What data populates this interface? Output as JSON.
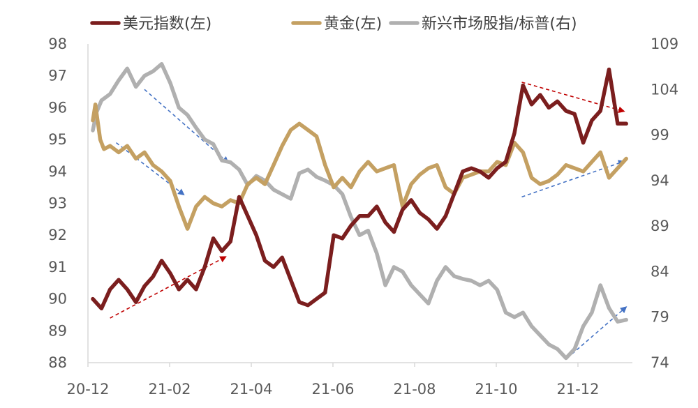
{
  "chart_data": {
    "type": "line",
    "legend_position": "top",
    "grid": false,
    "x_ticks": [
      "20-12",
      "21-02",
      "21-04",
      "21-06",
      "21-08",
      "21-10",
      "21-12"
    ],
    "y_left": {
      "min": 88,
      "max": 98,
      "ticks": [
        88,
        89,
        90,
        91,
        92,
        93,
        94,
        95,
        96,
        97,
        98
      ]
    },
    "y_right": {
      "min": 74,
      "max": 109,
      "ticks": [
        74,
        79,
        84,
        89,
        94,
        99,
        104,
        109
      ]
    },
    "series": [
      {
        "name": "美元指数(左)",
        "axis": "left",
        "color": "#7B1E1E",
        "points": [
          [
            "2020-12-01",
            90.0
          ],
          [
            "2020-12-08",
            89.7
          ],
          [
            "2020-12-15",
            90.3
          ],
          [
            "2020-12-22",
            90.6
          ],
          [
            "2020-12-29",
            90.3
          ],
          [
            "2021-01-05",
            89.9
          ],
          [
            "2021-01-12",
            90.4
          ],
          [
            "2021-01-19",
            90.7
          ],
          [
            "2021-01-26",
            91.2
          ],
          [
            "2021-02-02",
            90.8
          ],
          [
            "2021-02-09",
            90.3
          ],
          [
            "2021-02-16",
            90.6
          ],
          [
            "2021-02-23",
            90.3
          ],
          [
            "2021-03-02",
            91.0
          ],
          [
            "2021-03-09",
            91.9
          ],
          [
            "2021-03-16",
            91.5
          ],
          [
            "2021-03-23",
            91.8
          ],
          [
            "2021-03-30",
            93.2
          ],
          [
            "2021-04-06",
            92.6
          ],
          [
            "2021-04-13",
            92.0
          ],
          [
            "2021-04-20",
            91.2
          ],
          [
            "2021-04-27",
            91.0
          ],
          [
            "2021-05-04",
            91.3
          ],
          [
            "2021-05-11",
            90.6
          ],
          [
            "2021-05-18",
            89.9
          ],
          [
            "2021-05-25",
            89.8
          ],
          [
            "2021-06-01",
            90.0
          ],
          [
            "2021-06-08",
            90.2
          ],
          [
            "2021-06-15",
            92.0
          ],
          [
            "2021-06-22",
            91.9
          ],
          [
            "2021-06-29",
            92.3
          ],
          [
            "2021-07-06",
            92.6
          ],
          [
            "2021-07-13",
            92.6
          ],
          [
            "2021-07-20",
            92.9
          ],
          [
            "2021-07-27",
            92.4
          ],
          [
            "2021-08-03",
            92.1
          ],
          [
            "2021-08-10",
            92.8
          ],
          [
            "2021-08-17",
            93.1
          ],
          [
            "2021-08-24",
            92.7
          ],
          [
            "2021-08-31",
            92.5
          ],
          [
            "2021-09-07",
            92.2
          ],
          [
            "2021-09-14",
            92.6
          ],
          [
            "2021-09-21",
            93.3
          ],
          [
            "2021-09-28",
            94.0
          ],
          [
            "2021-10-05",
            94.1
          ],
          [
            "2021-10-12",
            94.0
          ],
          [
            "2021-10-19",
            93.8
          ],
          [
            "2021-10-26",
            94.1
          ],
          [
            "2021-11-02",
            94.3
          ],
          [
            "2021-11-09",
            95.2
          ],
          [
            "2021-11-16",
            96.7
          ],
          [
            "2021-11-23",
            96.1
          ],
          [
            "2021-11-30",
            96.4
          ],
          [
            "2021-12-07",
            96.0
          ],
          [
            "2021-12-14",
            96.2
          ],
          [
            "2021-12-21",
            95.9
          ],
          [
            "2021-12-28",
            95.8
          ],
          [
            "2022-01-04",
            94.9
          ],
          [
            "2022-01-11",
            95.6
          ],
          [
            "2022-01-18",
            95.9
          ],
          [
            "2022-01-25",
            97.2
          ],
          [
            "2022-02-01",
            95.5
          ],
          [
            "2022-02-08",
            95.5
          ]
        ]
      },
      {
        "name": "黄金(左)",
        "axis": "left",
        "color": "#C4A062",
        "points": [
          [
            "2020-12-01",
            95.6
          ],
          [
            "2020-12-03",
            96.1
          ],
          [
            "2020-12-07",
            95.0
          ],
          [
            "2020-12-10",
            94.7
          ],
          [
            "2020-12-15",
            94.8
          ],
          [
            "2020-12-22",
            94.6
          ],
          [
            "2020-12-29",
            94.8
          ],
          [
            "2021-01-05",
            94.4
          ],
          [
            "2021-01-12",
            94.6
          ],
          [
            "2021-01-19",
            94.2
          ],
          [
            "2021-01-26",
            94.0
          ],
          [
            "2021-02-02",
            93.7
          ],
          [
            "2021-02-09",
            92.9
          ],
          [
            "2021-02-16",
            92.2
          ],
          [
            "2021-02-23",
            92.9
          ],
          [
            "2021-03-02",
            93.2
          ],
          [
            "2021-03-09",
            93.0
          ],
          [
            "2021-03-16",
            92.9
          ],
          [
            "2021-03-23",
            93.1
          ],
          [
            "2021-03-30",
            93.0
          ],
          [
            "2021-04-06",
            93.6
          ],
          [
            "2021-04-13",
            93.8
          ],
          [
            "2021-04-20",
            93.6
          ],
          [
            "2021-04-27",
            94.2
          ],
          [
            "2021-05-04",
            94.8
          ],
          [
            "2021-05-11",
            95.3
          ],
          [
            "2021-05-18",
            95.5
          ],
          [
            "2021-05-25",
            95.3
          ],
          [
            "2021-06-01",
            95.1
          ],
          [
            "2021-06-08",
            94.2
          ],
          [
            "2021-06-15",
            93.5
          ],
          [
            "2021-06-22",
            93.8
          ],
          [
            "2021-06-29",
            93.5
          ],
          [
            "2021-07-06",
            94.0
          ],
          [
            "2021-07-13",
            94.3
          ],
          [
            "2021-07-20",
            94.0
          ],
          [
            "2021-07-27",
            94.1
          ],
          [
            "2021-08-03",
            94.2
          ],
          [
            "2021-08-10",
            92.9
          ],
          [
            "2021-08-17",
            93.6
          ],
          [
            "2021-08-24",
            93.9
          ],
          [
            "2021-08-31",
            94.1
          ],
          [
            "2021-09-07",
            94.2
          ],
          [
            "2021-09-14",
            93.5
          ],
          [
            "2021-09-21",
            93.3
          ],
          [
            "2021-09-28",
            93.8
          ],
          [
            "2021-10-05",
            93.9
          ],
          [
            "2021-10-12",
            94.0
          ],
          [
            "2021-10-19",
            94.0
          ],
          [
            "2021-10-26",
            94.3
          ],
          [
            "2021-11-02",
            94.2
          ],
          [
            "2021-11-09",
            94.9
          ],
          [
            "2021-11-16",
            94.6
          ],
          [
            "2021-11-23",
            93.8
          ],
          [
            "2021-11-30",
            93.6
          ],
          [
            "2021-12-07",
            93.7
          ],
          [
            "2021-12-14",
            93.9
          ],
          [
            "2021-12-21",
            94.2
          ],
          [
            "2021-12-28",
            94.1
          ],
          [
            "2022-01-04",
            94.0
          ],
          [
            "2022-01-11",
            94.3
          ],
          [
            "2022-01-18",
            94.6
          ],
          [
            "2022-01-25",
            93.8
          ],
          [
            "2022-02-01",
            94.1
          ],
          [
            "2022-02-08",
            94.4
          ]
        ]
      },
      {
        "name": "新兴市场股指/标普(右)",
        "axis": "right",
        "color": "#B0B0B0",
        "points": [
          [
            "2020-12-01",
            99.5
          ],
          [
            "2020-12-04",
            101.5
          ],
          [
            "2020-12-08",
            102.8
          ],
          [
            "2020-12-15",
            103.5
          ],
          [
            "2020-12-22",
            105.0
          ],
          [
            "2020-12-29",
            106.3
          ],
          [
            "2021-01-05",
            104.3
          ],
          [
            "2021-01-12",
            105.5
          ],
          [
            "2021-01-19",
            106.0
          ],
          [
            "2021-01-26",
            106.8
          ],
          [
            "2021-02-02",
            104.7
          ],
          [
            "2021-02-09",
            102.0
          ],
          [
            "2021-02-16",
            101.2
          ],
          [
            "2021-02-23",
            99.8
          ],
          [
            "2021-03-02",
            98.5
          ],
          [
            "2021-03-09",
            98.0
          ],
          [
            "2021-03-16",
            96.2
          ],
          [
            "2021-03-23",
            96.0
          ],
          [
            "2021-03-30",
            95.2
          ],
          [
            "2021-04-06",
            93.5
          ],
          [
            "2021-04-13",
            94.5
          ],
          [
            "2021-04-20",
            94.0
          ],
          [
            "2021-04-27",
            93.0
          ],
          [
            "2021-05-04",
            92.5
          ],
          [
            "2021-05-11",
            92.0
          ],
          [
            "2021-05-18",
            94.8
          ],
          [
            "2021-05-25",
            95.2
          ],
          [
            "2021-06-01",
            94.4
          ],
          [
            "2021-06-08",
            94.0
          ],
          [
            "2021-06-15",
            93.5
          ],
          [
            "2021-06-22",
            92.5
          ],
          [
            "2021-06-29",
            90.0
          ],
          [
            "2021-07-06",
            88.0
          ],
          [
            "2021-07-13",
            88.5
          ],
          [
            "2021-07-20",
            86.0
          ],
          [
            "2021-07-27",
            82.5
          ],
          [
            "2021-08-03",
            84.5
          ],
          [
            "2021-08-10",
            84.0
          ],
          [
            "2021-08-17",
            82.5
          ],
          [
            "2021-08-24",
            81.5
          ],
          [
            "2021-08-31",
            80.5
          ],
          [
            "2021-09-07",
            83.0
          ],
          [
            "2021-09-14",
            84.5
          ],
          [
            "2021-09-21",
            83.5
          ],
          [
            "2021-09-28",
            83.2
          ],
          [
            "2021-10-05",
            83.0
          ],
          [
            "2021-10-12",
            82.5
          ],
          [
            "2021-10-19",
            83.0
          ],
          [
            "2021-10-26",
            82.0
          ],
          [
            "2021-11-02",
            79.5
          ],
          [
            "2021-11-09",
            79.0
          ],
          [
            "2021-11-16",
            79.5
          ],
          [
            "2021-11-23",
            78.0
          ],
          [
            "2021-11-30",
            77.0
          ],
          [
            "2021-12-07",
            76.0
          ],
          [
            "2021-12-14",
            75.5
          ],
          [
            "2021-12-21",
            74.5
          ],
          [
            "2021-12-28",
            75.5
          ],
          [
            "2022-01-04",
            78.0
          ],
          [
            "2022-01-11",
            79.5
          ],
          [
            "2022-01-18",
            82.5
          ],
          [
            "2022-01-25",
            80.0
          ],
          [
            "2022-02-01",
            78.5
          ],
          [
            "2022-02-08",
            78.7
          ]
        ]
      }
    ],
    "annotations": [
      {
        "kind": "trend-arrow",
        "color": "#C00000",
        "axis": "left",
        "from": [
          "2020-12-15",
          89.4
        ],
        "to": [
          "2021-03-18",
          91.3
        ]
      },
      {
        "kind": "trend-arrow",
        "color": "#4472C4",
        "axis": "left",
        "from": [
          "2020-12-20",
          94.9
        ],
        "to": [
          "2021-02-12",
          93.3
        ]
      },
      {
        "kind": "trend-arrow",
        "color": "#4472C4",
        "axis": "right",
        "from": [
          "2021-01-12",
          104.0
        ],
        "to": [
          "2021-03-20",
          96.1
        ]
      },
      {
        "kind": "trend-arrow",
        "color": "#C00000",
        "axis": "left",
        "from": [
          "2021-11-15",
          96.8
        ],
        "to": [
          "2022-02-05",
          95.9
        ]
      },
      {
        "kind": "trend-arrow",
        "color": "#4472C4",
        "axis": "left",
        "from": [
          "2021-11-15",
          93.2
        ],
        "to": [
          "2022-02-05",
          94.3
        ]
      },
      {
        "kind": "trend-arrow",
        "color": "#4472C4",
        "axis": "right",
        "from": [
          "2021-12-22",
          74.5
        ],
        "to": [
          "2022-02-07",
          80.0
        ]
      }
    ]
  }
}
